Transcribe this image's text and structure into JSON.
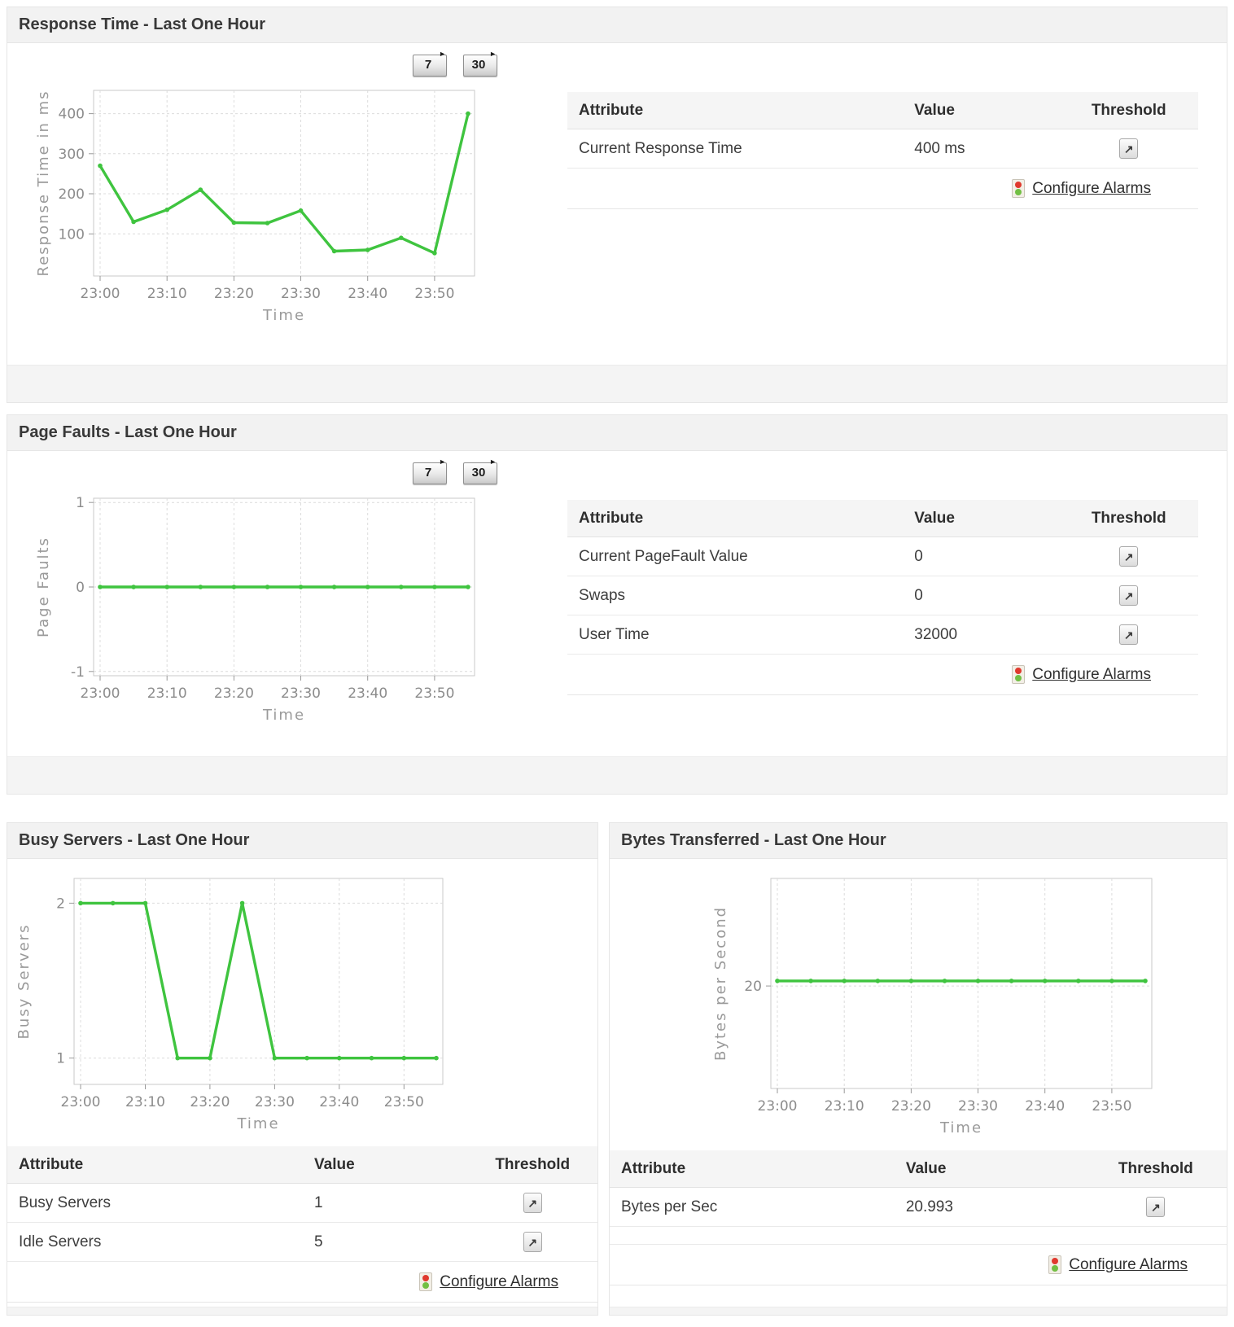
{
  "table_headers": {
    "attribute": "Attribute",
    "value": "Value",
    "threshold": "Threshold"
  },
  "configure_alarms_label": "Configure Alarms",
  "period_buttons": {
    "seven": "7",
    "thirty": "30"
  },
  "colors": {
    "line_green": "#3fc43f",
    "alarm_red": "#e0392e",
    "alarm_green": "#72bf44"
  },
  "panels": [
    {
      "title": "Response Time - Last One Hour",
      "table": {
        "rows": [
          {
            "attribute": "Current Response Time",
            "value": "400 ms"
          }
        ]
      }
    },
    {
      "title": "Page Faults - Last One Hour",
      "table": {
        "rows": [
          {
            "attribute": "Current PageFault Value",
            "value": "0"
          },
          {
            "attribute": "Swaps",
            "value": "0"
          },
          {
            "attribute": "User Time",
            "value": "32000"
          }
        ]
      }
    },
    {
      "title": "Busy Servers - Last One Hour",
      "table": {
        "rows": [
          {
            "attribute": "Busy Servers",
            "value": "1"
          },
          {
            "attribute": "Idle Servers",
            "value": "5"
          }
        ]
      }
    },
    {
      "title": "Bytes Transferred - Last One Hour",
      "table": {
        "rows": [
          {
            "attribute": "Bytes per Sec",
            "value": "20.993"
          }
        ]
      }
    }
  ],
  "chart_data": [
    {
      "type": "line",
      "title": "Response Time - Last One Hour",
      "x": [
        "23:00",
        "23:05",
        "23:10",
        "23:15",
        "23:20",
        "23:25",
        "23:30",
        "23:35",
        "23:40",
        "23:45",
        "23:50",
        "23:55"
      ],
      "values": [
        270,
        130,
        160,
        210,
        128,
        127,
        158,
        57,
        60,
        90,
        52,
        400
      ],
      "xlabel": "Time",
      "ylabel": "Response Time in ms",
      "yticks": [
        100,
        200,
        300,
        400
      ],
      "ylim": [
        -5,
        458
      ],
      "xtick_every": 2,
      "grid": true,
      "legend": false
    },
    {
      "type": "line",
      "title": "Page Faults - Last One Hour",
      "x": [
        "23:00",
        "23:05",
        "23:10",
        "23:15",
        "23:20",
        "23:25",
        "23:30",
        "23:35",
        "23:40",
        "23:45",
        "23:50",
        "23:55"
      ],
      "values": [
        0,
        0,
        0,
        0,
        0,
        0,
        0,
        0,
        0,
        0,
        0,
        0
      ],
      "xlabel": "Time",
      "ylabel": "Page Faults",
      "yticks": [
        -1,
        0,
        1
      ],
      "ylim": [
        -1.05,
        1.05
      ],
      "xtick_every": 2,
      "grid": true,
      "legend": false
    },
    {
      "type": "line",
      "title": "Busy Servers - Last One Hour",
      "x": [
        "23:00",
        "23:05",
        "23:10",
        "23:15",
        "23:20",
        "23:25",
        "23:30",
        "23:35",
        "23:40",
        "23:45",
        "23:50",
        "23:55"
      ],
      "values": [
        2,
        2,
        2,
        1,
        1,
        2,
        1,
        1,
        1,
        1,
        1,
        1
      ],
      "xlabel": "Time",
      "ylabel": "Busy Servers",
      "yticks": [
        1,
        2
      ],
      "ylim": [
        0.83,
        2.16
      ],
      "xtick_every": 2,
      "grid": true,
      "legend": false
    },
    {
      "type": "line",
      "title": "Bytes Transferred - Last One Hour",
      "x": [
        "23:00",
        "23:05",
        "23:10",
        "23:15",
        "23:20",
        "23:25",
        "23:30",
        "23:35",
        "23:40",
        "23:45",
        "23:50",
        "23:55"
      ],
      "values": [
        20.993,
        20.993,
        20.993,
        20.993,
        20.993,
        20.993,
        20.993,
        20.993,
        20.993,
        20.993,
        20.993,
        20.993
      ],
      "xlabel": "Time",
      "ylabel": "Bytes per Second",
      "yticks": [
        20
      ],
      "ylim": [
        0,
        41
      ],
      "xtick_every": 2,
      "grid": true,
      "legend": false
    }
  ]
}
